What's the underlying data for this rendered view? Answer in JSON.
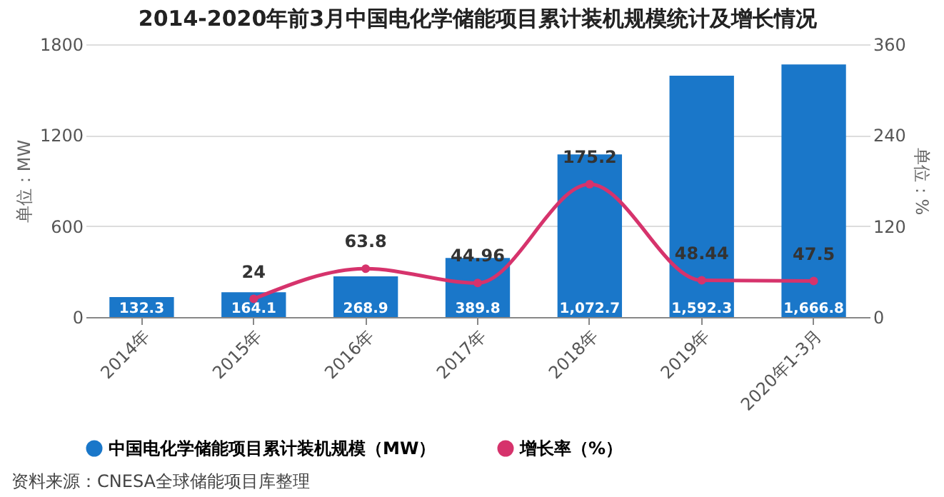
{
  "chart_data": {
    "type": "bar",
    "title": "2014-2020年前3月中国电化学储能项目累计装机规模统计及增长情况",
    "categories": [
      "2014年",
      "2015年",
      "2016年",
      "2017年",
      "2018年",
      "2019年",
      "2020年1-3月"
    ],
    "series": [
      {
        "name": "中国电化学储能项目累计装机规模（MW）",
        "color": "#1a77c9",
        "values": [
          132.3,
          164.1,
          268.9,
          389.8,
          1072.7,
          1592.3,
          1666.8
        ],
        "value_labels": [
          "132.3",
          "164.1",
          "268.9",
          "389.8",
          "1,072.7",
          "1,592.3",
          "1,666.8"
        ]
      },
      {
        "name": "增长率（%）",
        "type": "line",
        "axis": "y2",
        "color": "#d6336c",
        "values": [
          null,
          24,
          63.8,
          44.96,
          175.2,
          48.44,
          47.5
        ],
        "value_labels": [
          null,
          "24",
          "63.8",
          "44.96",
          "175.2",
          "48.44",
          "47.5"
        ]
      }
    ],
    "ylabel": "单位：MW",
    "y2label": "单位：%",
    "ylim": [
      0,
      1800
    ],
    "yticks": [
      0,
      600,
      1200,
      1800
    ],
    "y2lim": [
      0,
      360
    ],
    "y2ticks": [
      0,
      120,
      240,
      360
    ],
    "grid": "y",
    "legend": "bottom",
    "marker": "circle",
    "line_style": "solid",
    "annotations": [
      "资料来源：CNESA全球储能项目库整理"
    ]
  }
}
